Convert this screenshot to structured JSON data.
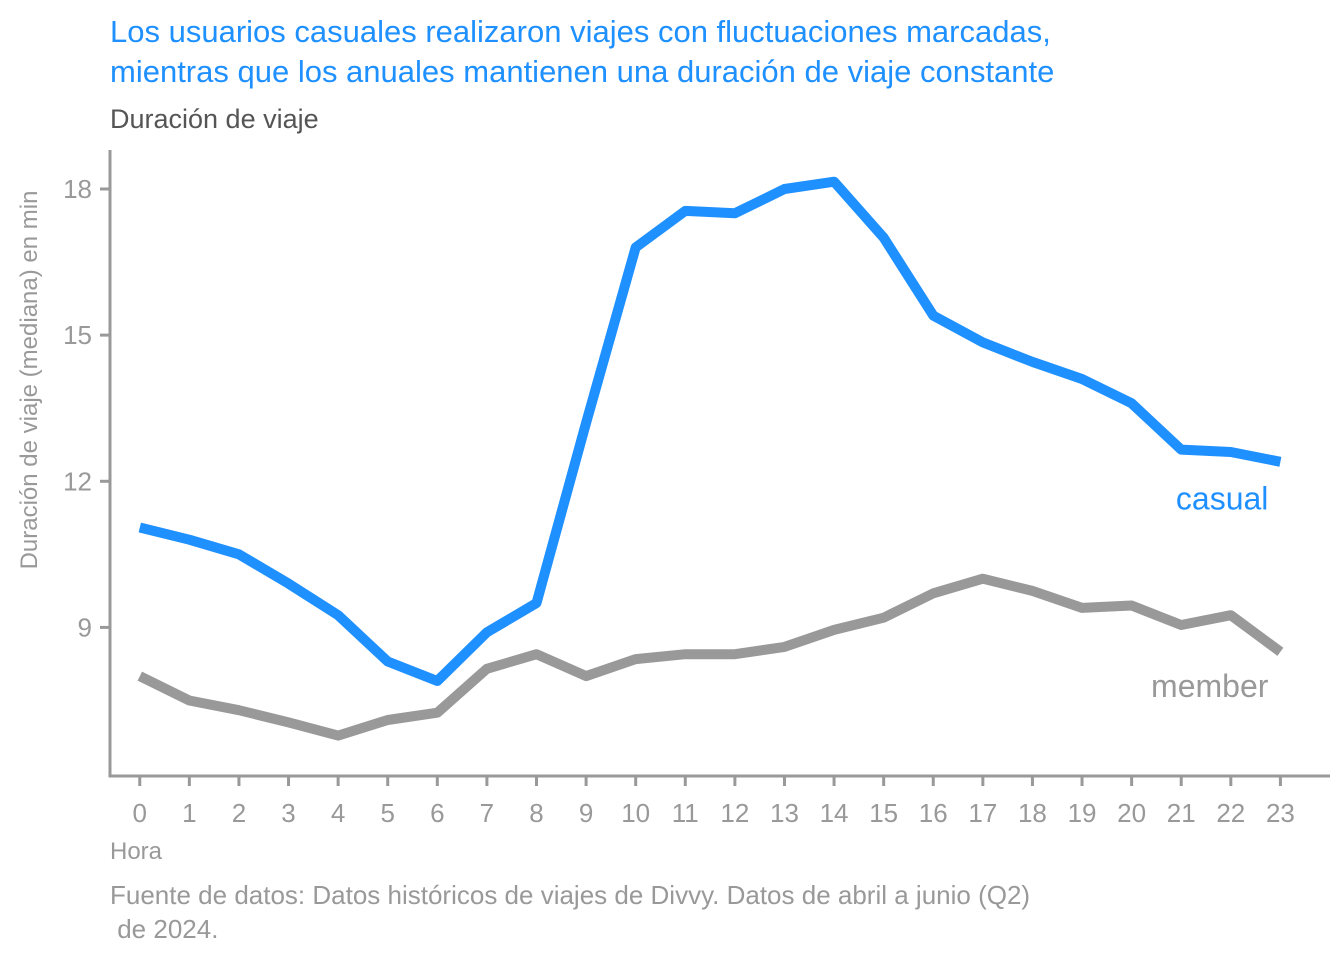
{
  "chart_data": {
    "type": "line",
    "title_lines": [
      "Los usuarios casuales realizaron viajes con fluctuaciones marcadas,",
      "mientras que los anuales mantienen una duración de viaje constante"
    ],
    "subtitle": "Duración de viaje",
    "ylabel": "Duración de viaje (mediana) en min",
    "xlabel": "Hora",
    "caption_lines": [
      "Fuente de datos: Datos históricos de viajes de Divvy. Datos de abril a junio (Q2)",
      " de 2024."
    ],
    "x": [
      0,
      1,
      2,
      3,
      4,
      5,
      6,
      7,
      8,
      9,
      10,
      11,
      12,
      13,
      14,
      15,
      16,
      17,
      18,
      19,
      20,
      21,
      22,
      23
    ],
    "x_tick_labels": [
      "0",
      "1",
      "2",
      "3",
      "4",
      "5",
      "6",
      "7",
      "8",
      "9",
      "10",
      "11",
      "12",
      "13",
      "14",
      "15",
      "16",
      "17",
      "18",
      "19",
      "20",
      "21",
      "22",
      "23"
    ],
    "y_ticks": [
      9,
      12,
      15,
      18
    ],
    "y_tick_labels": [
      "9",
      "12",
      "15",
      "18"
    ],
    "xlim": [
      -0.6,
      24.0
    ],
    "ylim": [
      5.95,
      18.8
    ],
    "grid": false,
    "legend": "direct labels at line ends",
    "series": [
      {
        "name": "casual",
        "color": "#1E90FF",
        "label_anchor": {
          "x": 23,
          "y": 11.65
        },
        "values": [
          11.05,
          10.8,
          10.5,
          9.9,
          9.25,
          8.3,
          7.9,
          8.9,
          9.5,
          13.2,
          16.8,
          17.55,
          17.5,
          18.0,
          18.15,
          17.0,
          15.4,
          14.85,
          14.45,
          14.1,
          13.6,
          12.65,
          12.6,
          12.4
        ]
      },
      {
        "name": "member",
        "color": "#999999",
        "label_anchor": {
          "x": 23,
          "y": 7.8
        },
        "values": [
          8.0,
          7.5,
          7.3,
          7.05,
          6.78,
          7.1,
          7.25,
          8.15,
          8.45,
          8.0,
          8.35,
          8.45,
          8.45,
          8.6,
          8.95,
          9.2,
          9.7,
          10.0,
          9.75,
          9.4,
          9.45,
          9.05,
          9.25,
          8.5
        ]
      }
    ]
  }
}
